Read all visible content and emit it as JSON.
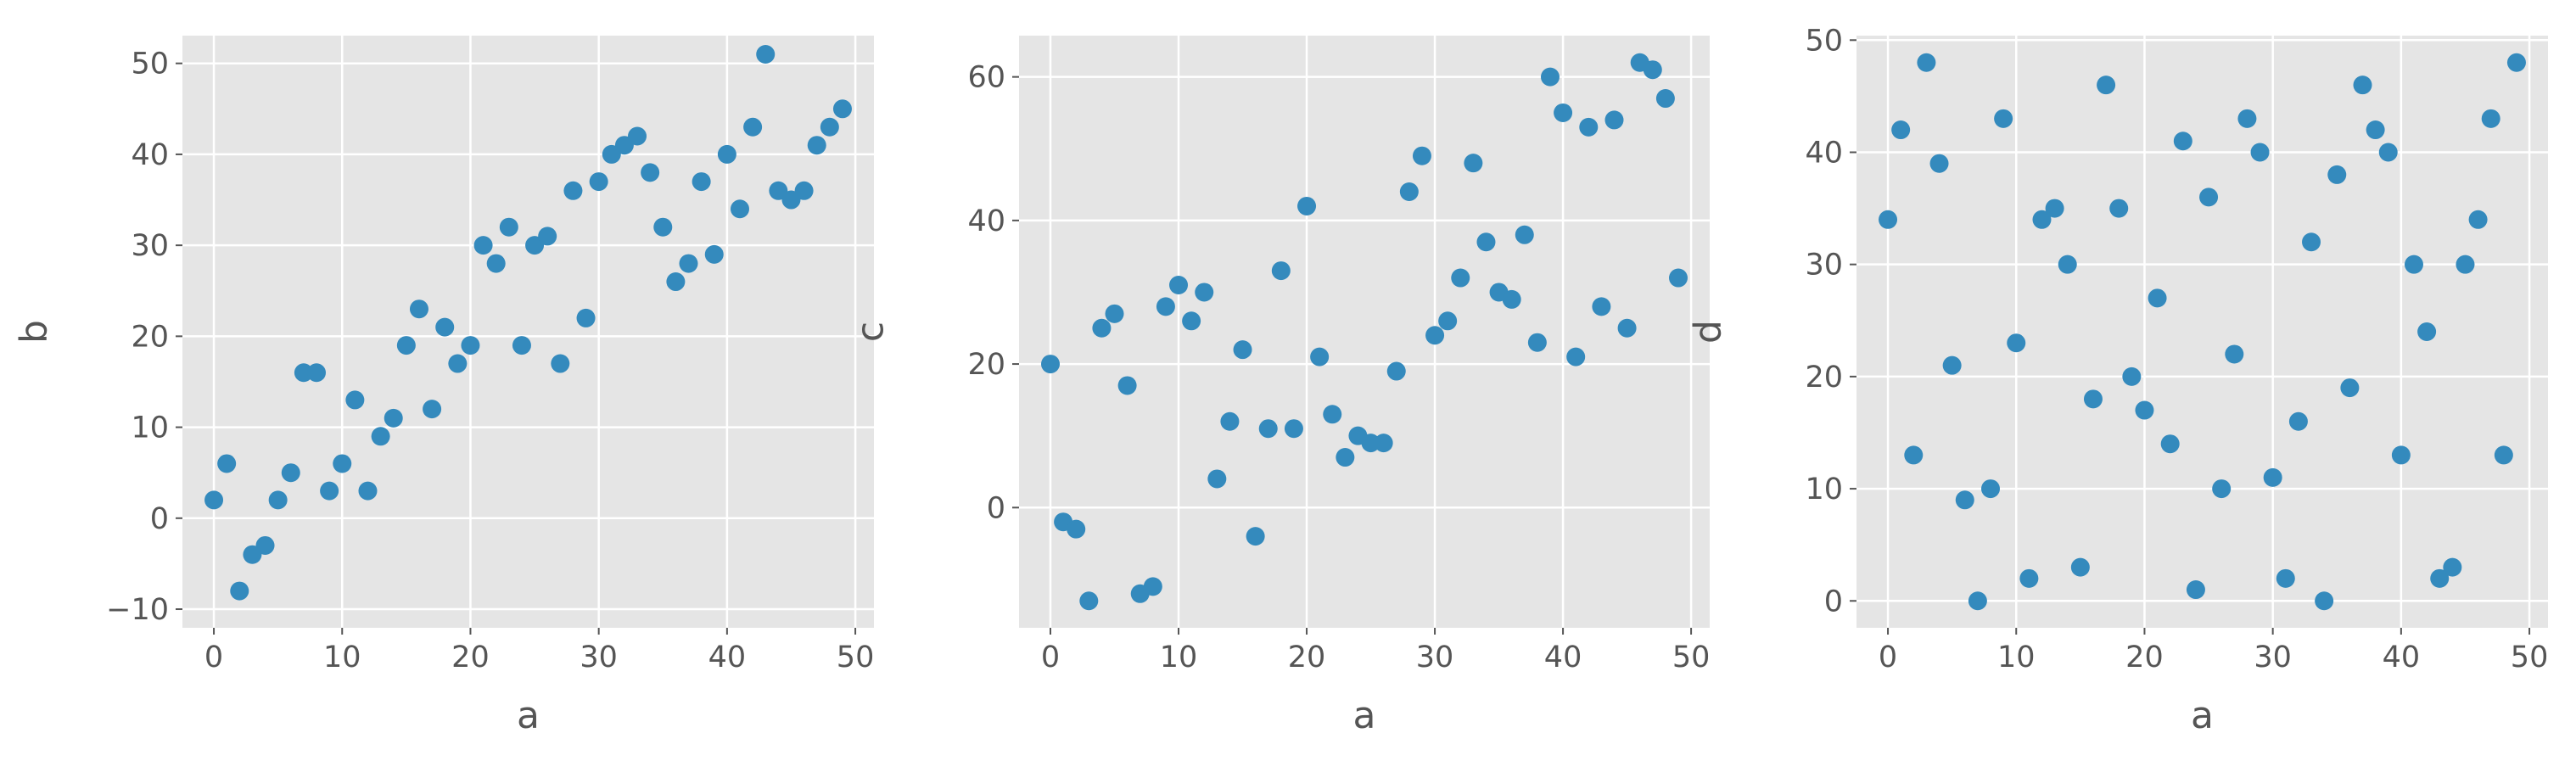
{
  "chart_data": [
    {
      "type": "scatter",
      "xlabel": "a",
      "ylabel": "b",
      "xlim": [
        -2.45,
        51.45
      ],
      "ylim": [
        -12.05,
        53.05
      ],
      "xticks": [
        0,
        10,
        20,
        30,
        40,
        50
      ],
      "yticks": [
        -10,
        0,
        10,
        20,
        30,
        40,
        50
      ],
      "grid": true,
      "x": [
        0,
        1,
        2,
        3,
        4,
        5,
        6,
        7,
        8,
        9,
        10,
        11,
        12,
        13,
        14,
        15,
        16,
        17,
        18,
        19,
        20,
        21,
        22,
        23,
        24,
        25,
        26,
        27,
        28,
        29,
        30,
        31,
        32,
        33,
        34,
        35,
        36,
        37,
        38,
        39,
        40,
        41,
        42,
        43,
        44,
        45,
        46,
        47,
        48,
        49
      ],
      "y": [
        2,
        6,
        -8,
        -4,
        -3,
        2,
        5,
        16,
        16,
        3,
        6,
        13,
        3,
        9,
        11,
        19,
        23,
        12,
        21,
        17,
        19,
        30,
        28,
        32,
        19,
        30,
        31,
        17,
        36,
        22,
        37,
        40,
        41,
        42,
        38,
        32,
        26,
        28,
        37,
        29,
        40,
        34,
        43,
        51,
        36,
        35,
        36,
        41,
        43,
        45
      ]
    },
    {
      "type": "scatter",
      "xlabel": "a",
      "ylabel": "c",
      "xlim": [
        -2.45,
        51.45
      ],
      "ylim": [
        -16.75,
        65.75
      ],
      "xticks": [
        0,
        10,
        20,
        30,
        40,
        50
      ],
      "yticks": [
        0,
        20,
        40,
        60
      ],
      "grid": true,
      "x": [
        0,
        1,
        2,
        3,
        4,
        5,
        6,
        7,
        8,
        9,
        10,
        11,
        12,
        13,
        14,
        15,
        16,
        17,
        18,
        19,
        20,
        21,
        22,
        23,
        24,
        25,
        26,
        27,
        28,
        29,
        30,
        31,
        32,
        33,
        34,
        35,
        36,
        37,
        38,
        39,
        40,
        41,
        42,
        43,
        44,
        45,
        46,
        47,
        48,
        49
      ],
      "y": [
        20,
        -2,
        -3,
        -13,
        25,
        27,
        17,
        -12,
        -11,
        28,
        31,
        26,
        30,
        4,
        12,
        22,
        -4,
        11,
        33,
        11,
        42,
        21,
        13,
        7,
        10,
        9,
        9,
        19,
        44,
        49,
        24,
        26,
        32,
        48,
        37,
        30,
        29,
        38,
        23,
        60,
        55,
        21,
        53,
        28,
        54,
        25,
        62,
        61,
        57,
        32
      ]
    },
    {
      "type": "scatter",
      "xlabel": "a",
      "ylabel": "d",
      "xlim": [
        -2.45,
        51.45
      ],
      "ylim": [
        -2.4,
        50.4
      ],
      "xticks": [
        0,
        10,
        20,
        30,
        40,
        50
      ],
      "yticks": [
        0,
        10,
        20,
        30,
        40,
        50
      ],
      "grid": true,
      "x": [
        0,
        1,
        2,
        3,
        4,
        5,
        6,
        7,
        8,
        9,
        10,
        11,
        12,
        13,
        14,
        15,
        16,
        17,
        18,
        19,
        20,
        21,
        22,
        23,
        24,
        25,
        26,
        27,
        28,
        29,
        30,
        31,
        32,
        33,
        34,
        35,
        36,
        37,
        38,
        39,
        40,
        41,
        42,
        43,
        44,
        45,
        46,
        47,
        48,
        49
      ],
      "y": [
        34,
        42,
        13,
        48,
        39,
        21,
        9,
        0,
        10,
        43,
        23,
        2,
        34,
        35,
        30,
        3,
        18,
        46,
        35,
        20,
        17,
        27,
        14,
        41,
        1,
        36,
        10,
        22,
        43,
        40,
        11,
        2,
        16,
        32,
        0,
        38,
        19,
        46,
        42,
        40,
        13,
        30,
        24,
        2,
        3,
        30,
        34,
        43,
        13,
        48
      ]
    }
  ],
  "style": {
    "plot_background": "#e5e5e5",
    "grid_color": "#ffffff",
    "marker_color": "#348abd",
    "text_color": "#555555"
  }
}
